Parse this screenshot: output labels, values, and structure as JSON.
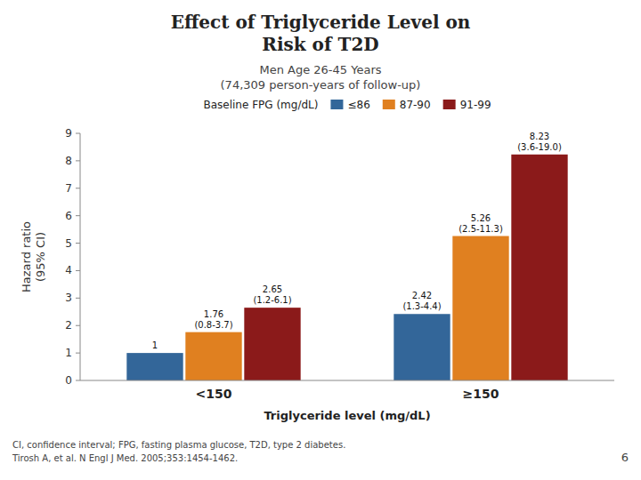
{
  "chart_data": {
    "type": "bar",
    "title": "Effect of Triglyceride Level on\nRisk of T2D",
    "subtitle": "Men Age 26-45 Years\n(74,309 person-years of follow-up)",
    "x_label": "Triglyceride level (mg/dL)",
    "y_label": "Hazard ratio\n(95% CI)",
    "categories": [
      "<150",
      "≥150"
    ],
    "series": [
      {
        "name": "≤86",
        "color": "#336699",
        "values": [
          1.0,
          2.42
        ],
        "value_labels": [
          "1",
          "2.42\n(1.3-4.4)"
        ]
      },
      {
        "name": "87-90",
        "color": "#E08020",
        "values": [
          1.76,
          5.26
        ],
        "value_labels": [
          "1.76\n(0.8-3.7)",
          "5.26\n(2.5-11.3)"
        ]
      },
      {
        "name": "91-99",
        "color": "#8B1A1A",
        "values": [
          2.65,
          8.23
        ],
        "value_labels": [
          "2.65\n(1.2-6.1)",
          "8.23\n(3.6-19.0)"
        ]
      }
    ],
    "legend_title": "Baseline FPG (mg/dL)",
    "legend": "top",
    "ylim": [
      0,
      9
    ],
    "yticks": [
      0,
      1,
      2,
      3,
      4,
      5,
      6,
      7,
      8,
      9
    ],
    "grid": false,
    "data_labels": true,
    "footnotes": [
      "CI, confidence interval; FPG, fasting plasma glucose, T2D, type 2 diabetes.",
      "Tirosh A, et al. N Engl J Med. 2005;353:1454-1462."
    ],
    "page_number": "6"
  }
}
